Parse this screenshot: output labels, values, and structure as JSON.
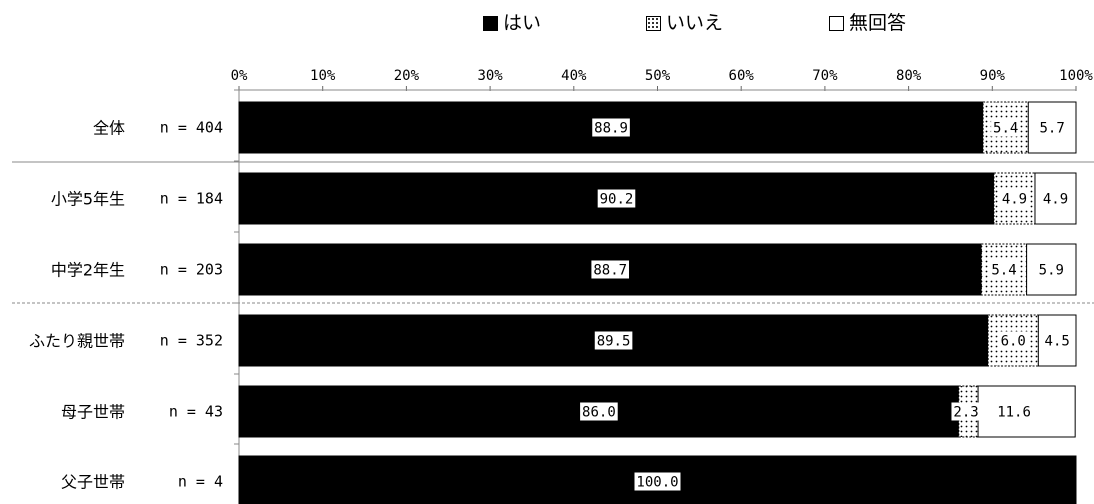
{
  "chart_data": {
    "type": "bar",
    "orientation": "horizontal",
    "stacked": true,
    "title": "",
    "xlabel": "",
    "ylabel": "",
    "xlim": [
      0,
      100
    ],
    "x_ticks": [
      "0%",
      "10%",
      "20%",
      "30%",
      "40%",
      "50%",
      "60%",
      "70%",
      "80%",
      "90%",
      "100%"
    ],
    "legend_position": "top",
    "categories": [
      "全体",
      "小学5年生",
      "中学2年生",
      "ふたり親世帯",
      "母子世帯",
      "父子世帯"
    ],
    "n_labels": [
      "n = 404",
      "n = 184",
      "n = 203",
      "n = 352",
      "n = 43",
      "n = 4"
    ],
    "series": [
      {
        "name": "はい",
        "color": "#000000",
        "values": [
          88.9,
          90.2,
          88.7,
          89.5,
          86.0,
          100.0
        ],
        "labels": [
          "88.9",
          "90.2",
          "88.7",
          "89.5",
          "86.0",
          "100.0"
        ]
      },
      {
        "name": "いいえ",
        "color": "#ffffff",
        "pattern": "dots",
        "values": [
          5.4,
          4.9,
          5.4,
          6.0,
          2.3,
          0
        ],
        "labels": [
          "5.4",
          "4.9",
          "5.4",
          "6.0",
          "2.3",
          ""
        ]
      },
      {
        "name": "無回答",
        "color": "#ffffff",
        "values": [
          5.7,
          4.9,
          5.9,
          4.5,
          11.6,
          0
        ],
        "labels": [
          "5.7",
          "4.9",
          "5.9",
          "4.5",
          "11.6",
          ""
        ]
      }
    ]
  }
}
